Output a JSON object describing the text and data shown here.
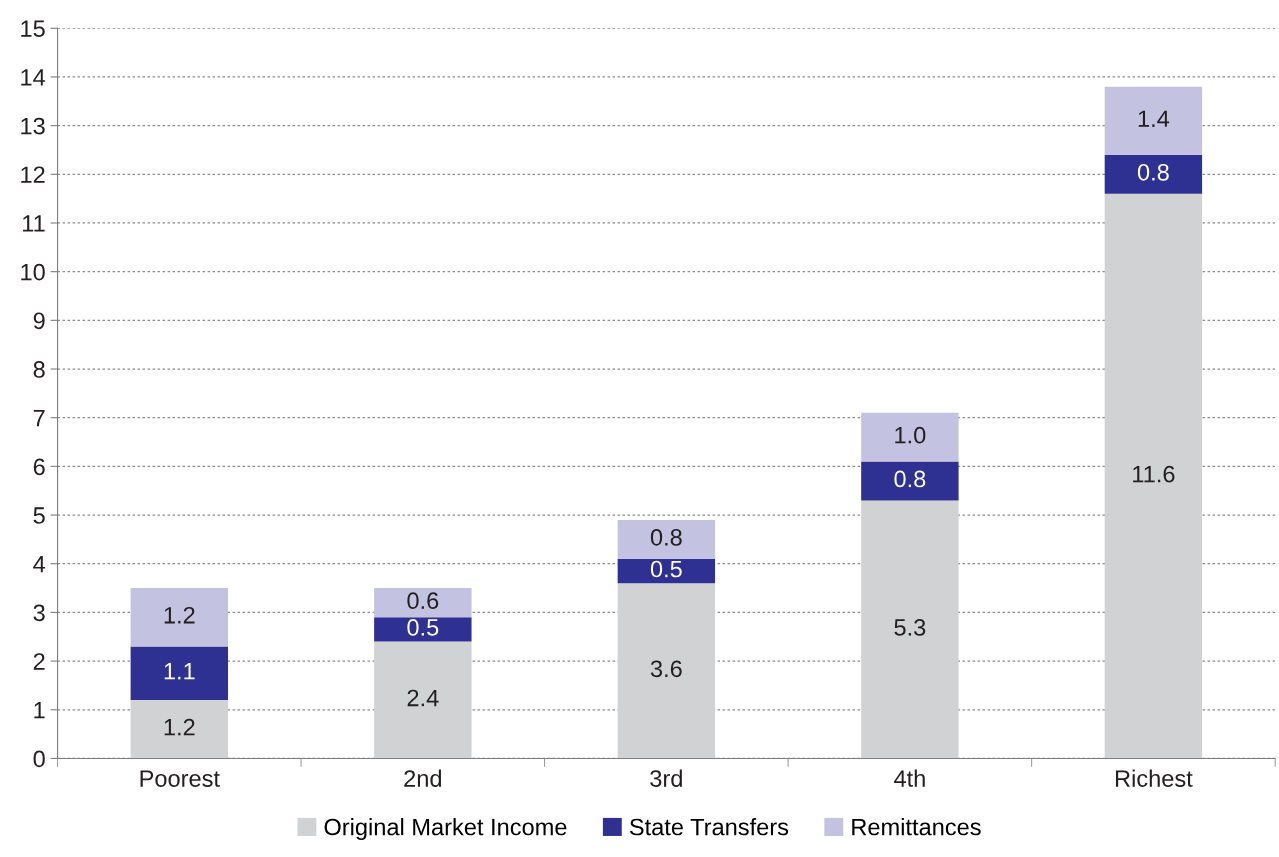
{
  "chart_data": {
    "type": "bar",
    "stacked": true,
    "categories": [
      "Poorest",
      "2nd",
      "3rd",
      "4th",
      "Richest"
    ],
    "series": [
      {
        "name": "Original Market Income",
        "color": "#d1d2d4",
        "values": [
          1.2,
          2.4,
          3.6,
          5.3,
          11.6
        ],
        "value_labels": [
          "1.2",
          "2.4",
          "3.6",
          "5.3",
          "11.6"
        ]
      },
      {
        "name": "State Transfers",
        "color": "#2e3192",
        "values": [
          1.1,
          0.5,
          0.5,
          0.8,
          0.8
        ],
        "value_labels": [
          "1.1",
          "0.5",
          "0.5",
          "0.8",
          "0.8"
        ]
      },
      {
        "name": "Remittances",
        "color": "#c3c2e0",
        "values": [
          1.2,
          0.6,
          0.8,
          1.0,
          1.4
        ],
        "value_labels": [
          "1.2",
          "0.6",
          "0.8",
          "1.0",
          "1.4"
        ]
      }
    ],
    "ylim": [
      0,
      15
    ],
    "yticks": [
      0,
      1,
      2,
      3,
      4,
      5,
      6,
      7,
      8,
      9,
      10,
      11,
      12,
      13,
      14,
      15
    ],
    "grid": "y",
    "legend": "bottom"
  }
}
